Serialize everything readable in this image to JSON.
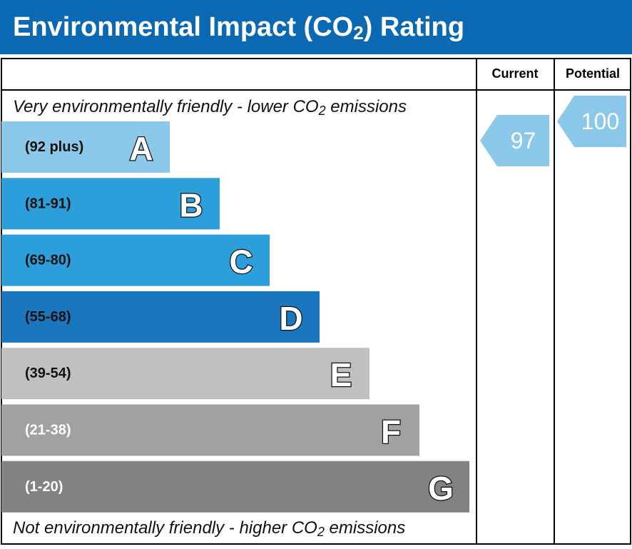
{
  "header": {
    "title": {
      "before": "Environmental Impact (CO",
      "sub": "2",
      "after": ") Rating"
    }
  },
  "columns": {
    "current": "Current",
    "potential": "Potential"
  },
  "top_note": {
    "before": "Very environmentally friendly - lower CO",
    "sub": "2",
    "after": " emissions"
  },
  "bottom_note": {
    "before": "Not environmentally friendly - higher CO",
    "sub": "2",
    "after": " emissions"
  },
  "bands": [
    {
      "range": "(92 plus)",
      "letter": "A",
      "color": "#8cc8ea",
      "text_color": "#111111"
    },
    {
      "range": "(81-91)",
      "letter": "B",
      "color": "#2c9fda",
      "text_color": "#111111"
    },
    {
      "range": "(69-80)",
      "letter": "C",
      "color": "#2c9fda",
      "text_color": "#111111"
    },
    {
      "range": "(55-68)",
      "letter": "D",
      "color": "#1a77be",
      "text_color": "#111111"
    },
    {
      "range": "(39-54)",
      "letter": "E",
      "color": "#c1c0be",
      "text_color": "#111111"
    },
    {
      "range": "(21-38)",
      "letter": "F",
      "color": "#a0a1a3",
      "text_color": "#ffffff"
    },
    {
      "range": "(1-20)",
      "letter": "G",
      "color": "#828283",
      "text_color": "#ffffff"
    }
  ],
  "current": {
    "value": 97,
    "color": "#8cc8ea"
  },
  "potential": {
    "value": 100,
    "color": "#8cc8ea"
  }
}
